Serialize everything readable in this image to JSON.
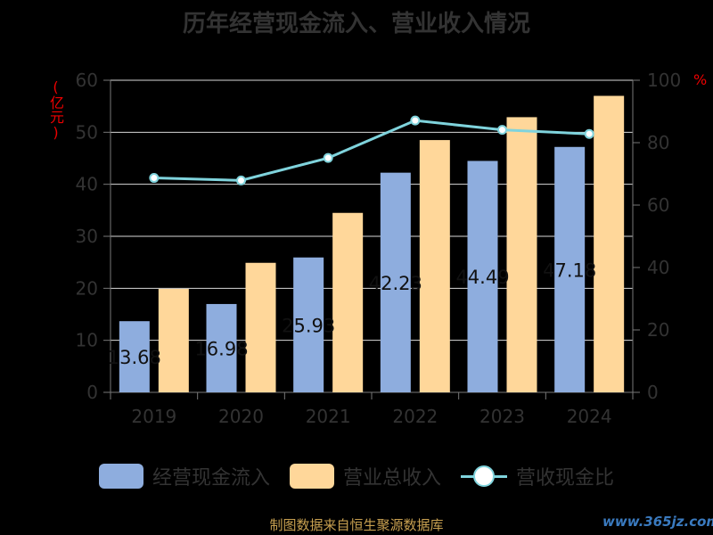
{
  "title": "历年经营现金流入、营业收入情况",
  "ylabel_left": "(亿元)",
  "ylabel_right": "%",
  "legend": {
    "bar1": "经营现金流入",
    "bar2": "营业总收入",
    "line": "营收现金比"
  },
  "source": "制图数据来自恒生聚源数据库",
  "watermark": "www.365jz.com",
  "colors": {
    "bar1": "#8eadde",
    "bar2": "#ffd79a",
    "line": "#7fd3dc"
  },
  "chart_data": {
    "type": "bar",
    "categories": [
      "2019",
      "2020",
      "2021",
      "2022",
      "2023",
      "2024"
    ],
    "series": [
      {
        "name": "经营现金流入",
        "type": "bar",
        "axis": "left",
        "values": [
          13.68,
          16.98,
          25.93,
          42.23,
          44.49,
          47.18
        ],
        "data_labels": [
          "13.68",
          "16.98",
          "25.93",
          "42.23",
          "44.49",
          "47.18"
        ]
      },
      {
        "name": "营业总收入",
        "type": "bar",
        "axis": "left",
        "values": [
          19.9,
          24.9,
          34.5,
          48.5,
          52.9,
          57.0
        ]
      },
      {
        "name": "营收现金比",
        "type": "line",
        "axis": "right",
        "values": [
          68.7,
          67.9,
          75.1,
          87.1,
          84.1,
          82.8
        ]
      }
    ],
    "y_left": {
      "min": 0,
      "max": 60,
      "ticks": [
        0,
        10,
        20,
        30,
        40,
        50,
        60
      ]
    },
    "y_right": {
      "min": 0,
      "max": 100,
      "ticks": [
        0,
        20,
        40,
        60,
        80,
        100
      ]
    },
    "grid": true,
    "legend_position": "bottom"
  }
}
